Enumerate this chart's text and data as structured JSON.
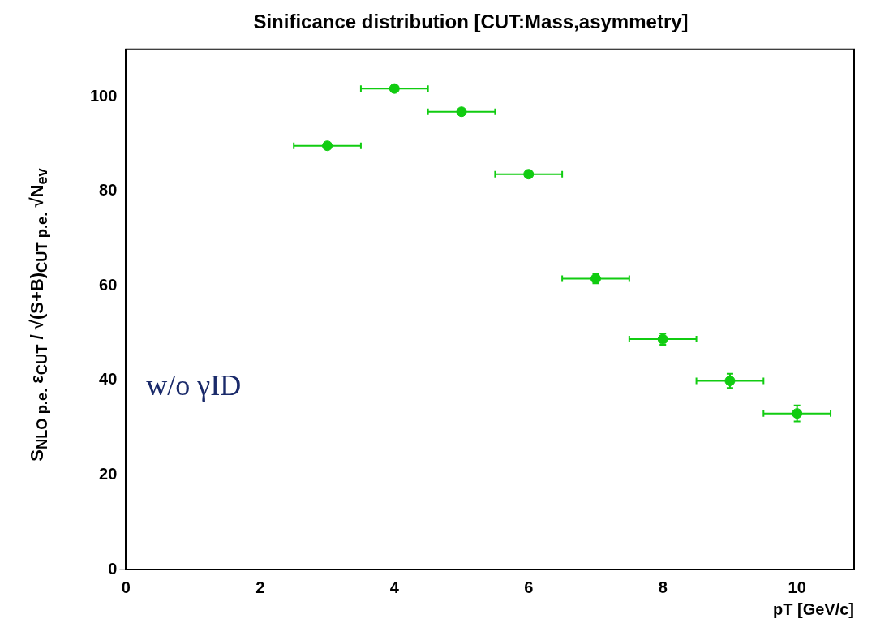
{
  "chart_data": {
    "type": "scatter",
    "title": "Sinificance distribution [CUT:Mass,asymmetry]",
    "xlabel": "pT [GeV/c]",
    "ylabel": "S$_{NLO p.e.}$ ε$_{CUT}$ / √(S+B)$_{CUT p.e.}$ √N$_{ev}$",
    "annotations": [
      "w/o γID"
    ],
    "x": [
      3,
      4,
      5,
      6,
      7,
      8,
      9,
      10
    ],
    "series": [
      {
        "color": "#11cc11",
        "values": [
          89.6,
          101.7,
          96.8,
          83.6,
          61.5,
          48.7,
          39.9,
          33.0
        ],
        "errors": [
          null,
          null,
          null,
          0.6,
          1.0,
          1.2,
          1.5,
          1.7
        ],
        "xerrors": [
          0.5,
          0.5,
          0.5,
          0.5,
          0.5,
          0.5,
          0.5,
          0.5
        ]
      }
    ],
    "xlim": [
      0,
      10.85
    ],
    "xticks": [
      0,
      2,
      4,
      6,
      8,
      10
    ],
    "ylim": [
      0,
      110
    ],
    "yticks": [
      0,
      20,
      40,
      60,
      80,
      100
    ],
    "grid": false,
    "legend": false,
    "marker": "circle"
  }
}
